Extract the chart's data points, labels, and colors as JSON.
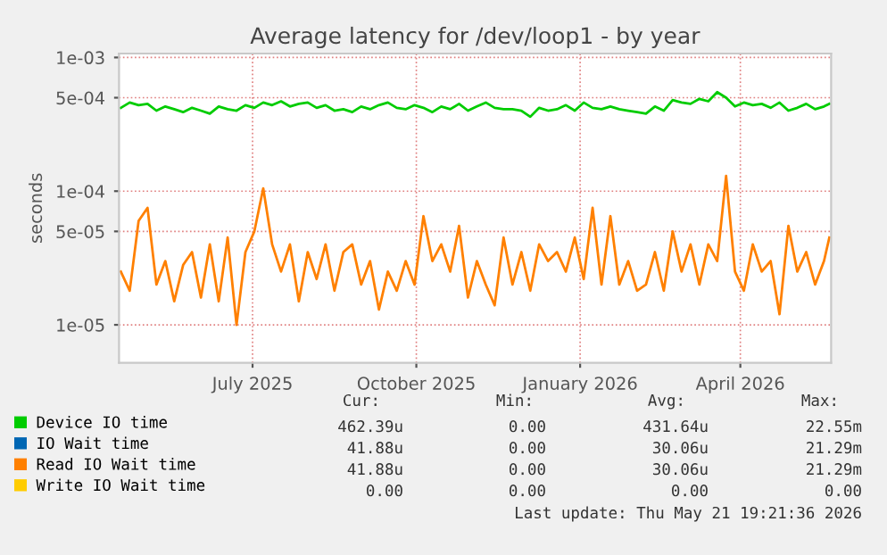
{
  "chart_data": {
    "type": "line",
    "title": "Average latency for /dev/loop1 - by year",
    "ylabel": "seconds",
    "log": "y",
    "x": [
      "2025-04-18",
      "2025-04-23",
      "2025-04-28",
      "2025-05-03",
      "2025-05-08",
      "2025-05-13",
      "2025-05-18",
      "2025-05-23",
      "2025-05-28",
      "2025-06-02",
      "2025-06-07",
      "2025-06-12",
      "2025-06-17",
      "2025-06-22",
      "2025-06-27",
      "2025-07-02",
      "2025-07-07",
      "2025-07-12",
      "2025-07-17",
      "2025-07-22",
      "2025-07-27",
      "2025-08-01",
      "2025-08-06",
      "2025-08-11",
      "2025-08-16",
      "2025-08-21",
      "2025-08-26",
      "2025-08-31",
      "2025-09-05",
      "2025-09-10",
      "2025-09-15",
      "2025-09-20",
      "2025-09-25",
      "2025-09-30",
      "2025-10-05",
      "2025-10-10",
      "2025-10-15",
      "2025-10-20",
      "2025-10-25",
      "2025-10-30",
      "2025-11-04",
      "2025-11-09",
      "2025-11-14",
      "2025-11-19",
      "2025-11-24",
      "2025-11-29",
      "2025-12-04",
      "2025-12-09",
      "2025-12-14",
      "2025-12-19",
      "2025-12-24",
      "2025-12-29",
      "2026-01-03",
      "2026-01-08",
      "2026-01-13",
      "2026-01-18",
      "2026-01-23",
      "2026-01-28",
      "2026-02-02",
      "2026-02-07",
      "2026-02-12",
      "2026-02-17",
      "2026-02-22",
      "2026-02-27",
      "2026-03-04",
      "2026-03-09",
      "2026-03-14",
      "2026-03-19",
      "2026-03-24",
      "2026-03-29",
      "2026-04-03",
      "2026-04-08",
      "2026-04-13",
      "2026-04-18",
      "2026-04-23",
      "2026-04-28",
      "2026-05-03",
      "2026-05-08",
      "2026-05-13",
      "2026-05-18",
      "2026-05-21"
    ],
    "series": [
      {
        "name": "Device IO time",
        "color": "#00cc00",
        "values": [
          0.00042,
          0.00046,
          0.00044,
          0.00045,
          0.0004,
          0.00043,
          0.00041,
          0.00039,
          0.00042,
          0.0004,
          0.00038,
          0.00043,
          0.00041,
          0.0004,
          0.00044,
          0.00042,
          0.00046,
          0.00044,
          0.00047,
          0.00043,
          0.00045,
          0.00046,
          0.00042,
          0.00044,
          0.0004,
          0.00041,
          0.00039,
          0.00043,
          0.00041,
          0.00044,
          0.00046,
          0.00042,
          0.00041,
          0.00044,
          0.00042,
          0.00039,
          0.00043,
          0.00041,
          0.00045,
          0.0004,
          0.00043,
          0.00046,
          0.00042,
          0.00041,
          0.00041,
          0.0004,
          0.00036,
          0.00042,
          0.0004,
          0.00041,
          0.00044,
          0.0004,
          0.00046,
          0.00042,
          0.00041,
          0.00043,
          0.00041,
          0.0004,
          0.00039,
          0.00038,
          0.00043,
          0.0004,
          0.00048,
          0.00046,
          0.00045,
          0.00049,
          0.00047,
          0.00055,
          0.0005,
          0.00043,
          0.00046,
          0.00044,
          0.00045,
          0.00042,
          0.00046,
          0.0004,
          0.00042,
          0.00045,
          0.00041,
          0.00043,
          0.00045
        ]
      },
      {
        "name": "IO Wait time",
        "color": "#0066b3",
        "values": [
          null,
          null,
          null,
          null,
          null,
          null,
          null,
          null,
          null,
          null,
          null,
          null,
          null,
          null,
          null,
          null,
          null,
          null,
          null,
          null,
          null,
          null,
          null,
          null,
          null,
          null,
          null,
          null,
          null,
          null,
          null,
          null,
          null,
          null,
          null,
          null,
          null,
          null,
          null,
          null,
          null,
          null,
          null,
          null,
          null,
          null,
          null,
          null,
          null,
          null,
          null,
          null,
          null,
          null,
          null,
          null,
          null,
          null,
          null,
          null,
          null,
          null,
          null,
          null,
          null,
          null,
          null,
          null,
          null,
          null,
          null,
          null,
          null,
          null,
          null,
          null,
          null,
          null,
          null,
          null,
          null
        ]
      },
      {
        "name": "Read IO Wait time",
        "color": "#ff8000",
        "values": [
          2.5e-05,
          1.8e-05,
          6e-05,
          7.5e-05,
          2e-05,
          3e-05,
          1.5e-05,
          2.8e-05,
          3.5e-05,
          1.6e-05,
          4e-05,
          1.5e-05,
          4.5e-05,
          1e-05,
          3.5e-05,
          5e-05,
          0.000105,
          4e-05,
          2.5e-05,
          4e-05,
          1.5e-05,
          3.5e-05,
          2.2e-05,
          4e-05,
          1.8e-05,
          3.5e-05,
          4e-05,
          2e-05,
          3e-05,
          1.3e-05,
          2.5e-05,
          1.8e-05,
          3e-05,
          2e-05,
          6.5e-05,
          3e-05,
          4e-05,
          2.5e-05,
          5.5e-05,
          1.6e-05,
          3e-05,
          2e-05,
          1.4e-05,
          4.5e-05,
          2e-05,
          3.5e-05,
          1.8e-05,
          4e-05,
          3e-05,
          3.5e-05,
          2.5e-05,
          4.5e-05,
          2.2e-05,
          7.5e-05,
          2e-05,
          6.5e-05,
          2e-05,
          3e-05,
          1.8e-05,
          2e-05,
          3.5e-05,
          1.8e-05,
          5e-05,
          2.5e-05,
          4e-05,
          2e-05,
          4e-05,
          3e-05,
          0.00013,
          2.5e-05,
          1.8e-05,
          4e-05,
          2.5e-05,
          3e-05,
          1.2e-05,
          5.5e-05,
          2.5e-05,
          3.5e-05,
          2e-05,
          3e-05,
          4.5e-05
        ]
      },
      {
        "name": "Write IO Wait time",
        "color": "#ffcc00",
        "values": [
          null,
          null,
          null,
          null,
          null,
          null,
          null,
          null,
          null,
          null,
          null,
          null,
          null,
          null,
          null,
          null,
          null,
          null,
          null,
          null,
          null,
          null,
          null,
          null,
          null,
          null,
          null,
          null,
          null,
          null,
          null,
          null,
          null,
          null,
          null,
          null,
          null,
          null,
          null,
          null,
          null,
          null,
          null,
          null,
          null,
          null,
          null,
          null,
          null,
          null,
          null,
          null,
          null,
          null,
          null,
          null,
          null,
          null,
          null,
          null,
          null,
          null,
          null,
          null,
          null,
          null,
          null,
          null,
          null,
          null,
          null,
          null,
          null,
          null,
          null,
          null,
          null,
          null,
          null,
          null,
          null
        ]
      }
    ],
    "xlim": [
      "2025-04-17",
      "2026-05-22"
    ],
    "xticks": [
      {
        "value": "2025-07-01",
        "label": "July 2025"
      },
      {
        "value": "2025-10-01",
        "label": "October 2025"
      },
      {
        "value": "2026-01-01",
        "label": "January 2026"
      },
      {
        "value": "2026-04-01",
        "label": "April 2026"
      }
    ],
    "ylim": [
      5.2e-06,
      0.00107
    ],
    "yticks": [
      {
        "value": 1e-05,
        "label": "1e-05"
      },
      {
        "value": 5e-05,
        "label": "5e-05"
      },
      {
        "value": 0.0001,
        "label": "1e-04"
      },
      {
        "value": 0.0005,
        "label": "5e-04"
      },
      {
        "value": 0.001,
        "label": "1e-03"
      }
    ],
    "grid": true,
    "legend": "bottom",
    "marker": "none",
    "line_style": "solid",
    "annotations": [
      "Cur:",
      "Min:",
      "Avg:",
      "Max:",
      "462.39u",
      "0.00",
      "431.64u",
      "22.55m",
      "41.88u",
      "0.00",
      "30.06u",
      "21.29m",
      "41.88u",
      "0.00",
      "30.06u",
      "21.29m",
      "0.00",
      "0.00",
      "0.00",
      "0.00",
      "Last update: Thu May 21 19:21:36 2026"
    ]
  }
}
